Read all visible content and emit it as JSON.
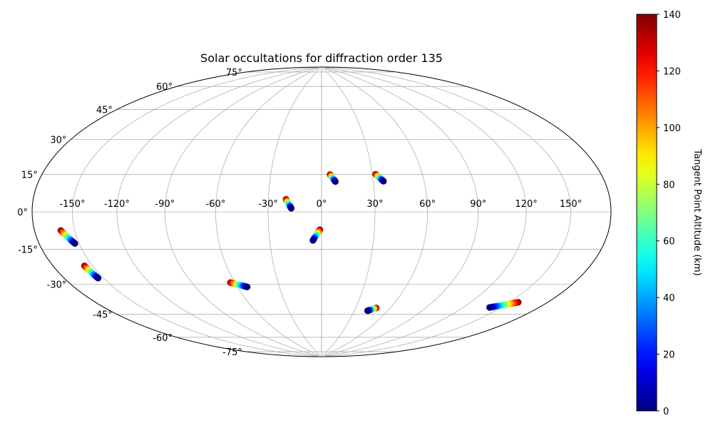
{
  "chart_data": {
    "type": "scatter",
    "projection": "hammer",
    "title": "Solar occultations for diffraction order 135",
    "grid": true,
    "longitude_ticks": [
      -150,
      -120,
      -90,
      -60,
      -30,
      0,
      30,
      60,
      90,
      120,
      150
    ],
    "longitude_tick_labels": [
      "-150°",
      "-120°",
      "-90°",
      "-60°",
      "-30°",
      "0°",
      "30°",
      "60°",
      "90°",
      "120°",
      "150°"
    ],
    "latitude_ticks": [
      -75,
      -60,
      -45,
      -30,
      -15,
      0,
      15,
      30,
      45,
      60,
      75
    ],
    "latitude_tick_labels": [
      "-75°",
      "-60°",
      "-45°",
      "-30°",
      "-15°",
      "0°",
      "15°",
      "30°",
      "45°",
      "60°",
      "75°"
    ],
    "colorbar": {
      "label": "Tangent Point Altitude (km)",
      "range": [
        0,
        140
      ],
      "ticks": [
        0,
        20,
        40,
        60,
        80,
        100,
        120,
        140
      ],
      "tick_labels": [
        "0",
        "20",
        "40",
        "60",
        "80",
        "100",
        "120",
        "140"
      ],
      "colormap": "jet"
    },
    "tracks": [
      {
        "start_lon": 5,
        "start_lat": 21,
        "start_alt": 140,
        "end_lon": 8,
        "end_lat": 17,
        "end_alt": 0
      },
      {
        "start_lon": 32,
        "start_lat": 21,
        "start_alt": 140,
        "end_lon": 36,
        "end_lat": 17,
        "end_alt": 0
      },
      {
        "start_lon": -20,
        "start_lat": 7,
        "start_alt": 140,
        "end_lon": -17,
        "end_lat": 2,
        "end_alt": 0
      },
      {
        "start_lon": -1,
        "start_lat": -10,
        "start_alt": 140,
        "end_lon": -5,
        "end_lat": -16,
        "end_alt": 0
      },
      {
        "start_lon": -160,
        "start_lat": -8,
        "start_alt": 140,
        "end_lon": -153,
        "end_lat": -14,
        "end_alt": 0
      },
      {
        "start_lon": -156,
        "start_lat": -24,
        "start_alt": 140,
        "end_lon": -154,
        "end_lat": -30,
        "end_alt": 0
      },
      {
        "start_lon": -63,
        "start_lat": -39,
        "start_alt": 140,
        "end_lon": -53,
        "end_lat": -42,
        "end_alt": 0
      },
      {
        "start_lon": 48,
        "start_lat": -55,
        "start_alt": 140,
        "end_lon": 42,
        "end_lat": -57,
        "end_alt": 0
      },
      {
        "start_lon": 157,
        "start_lat": -42,
        "start_alt": 140,
        "end_lon": 141,
        "end_lat": -47,
        "end_alt": 0
      }
    ]
  }
}
